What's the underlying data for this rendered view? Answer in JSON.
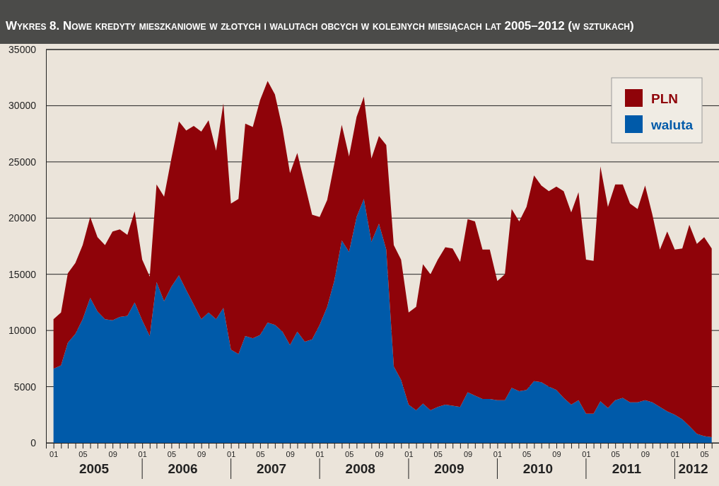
{
  "chart_data": {
    "type": "area",
    "stacked": true,
    "title": "Wykres 8. Nowe kredyty mieszkaniowe w złotych i walutach obcych w kolejnych miesiącach lat 2005–2012 (w sztukach)",
    "x": [
      "2005-01",
      "2005-02",
      "2005-03",
      "2005-04",
      "2005-05",
      "2005-06",
      "2005-07",
      "2005-08",
      "2005-09",
      "2005-10",
      "2005-11",
      "2005-12",
      "2006-01",
      "2006-02",
      "2006-03",
      "2006-04",
      "2006-05",
      "2006-06",
      "2006-07",
      "2006-08",
      "2006-09",
      "2006-10",
      "2006-11",
      "2006-12",
      "2007-01",
      "2007-02",
      "2007-03",
      "2007-04",
      "2007-05",
      "2007-06",
      "2007-07",
      "2007-08",
      "2007-09",
      "2007-10",
      "2007-11",
      "2007-12",
      "2008-01",
      "2008-02",
      "2008-03",
      "2008-04",
      "2008-05",
      "2008-06",
      "2008-07",
      "2008-08",
      "2008-09",
      "2008-10",
      "2008-11",
      "2008-12",
      "2009-01",
      "2009-02",
      "2009-03",
      "2009-04",
      "2009-05",
      "2009-06",
      "2009-07",
      "2009-08",
      "2009-09",
      "2009-10",
      "2009-11",
      "2009-12",
      "2010-01",
      "2010-02",
      "2010-03",
      "2010-04",
      "2010-05",
      "2010-06",
      "2010-07",
      "2010-08",
      "2010-09",
      "2010-10",
      "2010-11",
      "2010-12",
      "2011-01",
      "2011-02",
      "2011-03",
      "2011-04",
      "2011-05",
      "2011-06",
      "2011-07",
      "2011-08",
      "2011-09",
      "2011-10",
      "2011-11",
      "2011-12",
      "2012-01",
      "2012-02",
      "2012-03",
      "2012-04",
      "2012-05",
      "2012-06"
    ],
    "series": [
      {
        "name": "waluta",
        "color": "#005aa9",
        "values": [
          6600,
          6900,
          8900,
          9700,
          11000,
          12900,
          11700,
          11000,
          10900,
          11200,
          11300,
          12500,
          10900,
          9500,
          14300,
          12600,
          13900,
          14900,
          13600,
          12300,
          11000,
          11600,
          11000,
          12000,
          8300,
          7900,
          9500,
          9300,
          9600,
          10700,
          10500,
          9900,
          8700,
          9900,
          9000,
          9200,
          10500,
          12100,
          14400,
          18000,
          17000,
          20100,
          21700,
          17900,
          19500,
          17200,
          6800,
          5600,
          3400,
          2900,
          3500,
          2900,
          3200,
          3400,
          3300,
          3200,
          4500,
          4200,
          3900,
          3900,
          3800,
          3800,
          4900,
          4600,
          4700,
          5500,
          5400,
          5000,
          4700,
          4000,
          3400,
          3800,
          2600,
          2600,
          3700,
          3100,
          3800,
          4000,
          3600,
          3600,
          3800,
          3600,
          3200,
          2800,
          2500,
          2100,
          1500,
          800,
          600,
          500
        ]
      },
      {
        "name": "PLN",
        "color": "#8f0309",
        "values": [
          4400,
          4700,
          6200,
          6300,
          6600,
          7200,
          6600,
          6600,
          7900,
          7800,
          7200,
          8100,
          5400,
          5300,
          8700,
          9300,
          11400,
          13700,
          14200,
          15900,
          16700,
          17100,
          15000,
          18200,
          13000,
          13800,
          18900,
          18800,
          20900,
          21500,
          20500,
          18100,
          15300,
          15900,
          14000,
          11100,
          9600,
          9500,
          10400,
          10300,
          8500,
          8900,
          9100,
          7400,
          7800,
          9300,
          10800,
          10700,
          8200,
          9200,
          12400,
          12100,
          13100,
          14000,
          14000,
          12900,
          15400,
          15500,
          13300,
          13300,
          10600,
          11200,
          15900,
          15100,
          16300,
          18300,
          17500,
          17400,
          18100,
          18400,
          17100,
          18500,
          13700,
          13600,
          20900,
          17900,
          19200,
          19000,
          17700,
          17200,
          19100,
          16700,
          14000,
          16000,
          14700,
          15200,
          17900,
          16900,
          17700,
          16800
        ]
      }
    ],
    "xlim": [
      "2004-12",
      "2012-07"
    ],
    "xticks": [
      {
        "value": "2005-01",
        "label": "01"
      },
      {
        "value": "2005-02",
        "label": null
      },
      {
        "value": "2005-03",
        "label": null
      },
      {
        "value": "2005-04",
        "label": null
      },
      {
        "value": "2005-05",
        "label": "05"
      },
      {
        "value": "2005-06",
        "label": null
      },
      {
        "value": "2005-07",
        "label": null
      },
      {
        "value": "2005-08",
        "label": null
      },
      {
        "value": "2005-09",
        "label": "09"
      },
      {
        "value": "2005-10",
        "label": null
      },
      {
        "value": "2005-11",
        "label": null
      },
      {
        "value": "2005-12",
        "label": null
      },
      {
        "value": "2006-01",
        "label": "01"
      },
      {
        "value": "2006-02",
        "label": null
      },
      {
        "value": "2006-03",
        "label": null
      },
      {
        "value": "2006-04",
        "label": null
      },
      {
        "value": "2006-05",
        "label": "05"
      },
      {
        "value": "2006-06",
        "label": null
      },
      {
        "value": "2006-07",
        "label": null
      },
      {
        "value": "2006-08",
        "label": null
      },
      {
        "value": "2006-09",
        "label": "09"
      },
      {
        "value": "2006-10",
        "label": null
      },
      {
        "value": "2006-11",
        "label": null
      },
      {
        "value": "2006-12",
        "label": null
      },
      {
        "value": "2007-01",
        "label": "01"
      },
      {
        "value": "2007-02",
        "label": null
      },
      {
        "value": "2007-03",
        "label": null
      },
      {
        "value": "2007-04",
        "label": null
      },
      {
        "value": "2007-05",
        "label": "05"
      },
      {
        "value": "2007-06",
        "label": null
      },
      {
        "value": "2007-07",
        "label": null
      },
      {
        "value": "2007-08",
        "label": null
      },
      {
        "value": "2007-09",
        "label": "09"
      },
      {
        "value": "2007-10",
        "label": null
      },
      {
        "value": "2007-11",
        "label": null
      },
      {
        "value": "2007-12",
        "label": null
      },
      {
        "value": "2008-01",
        "label": "01"
      },
      {
        "value": "2008-02",
        "label": null
      },
      {
        "value": "2008-03",
        "label": null
      },
      {
        "value": "2008-04",
        "label": null
      },
      {
        "value": "2008-05",
        "label": "05"
      },
      {
        "value": "2008-06",
        "label": null
      },
      {
        "value": "2008-07",
        "label": null
      },
      {
        "value": "2008-08",
        "label": null
      },
      {
        "value": "2008-09",
        "label": "09"
      },
      {
        "value": "2008-10",
        "label": null
      },
      {
        "value": "2008-11",
        "label": null
      },
      {
        "value": "2008-12",
        "label": null
      },
      {
        "value": "2009-01",
        "label": "01"
      },
      {
        "value": "2009-02",
        "label": null
      },
      {
        "value": "2009-03",
        "label": null
      },
      {
        "value": "2009-04",
        "label": null
      },
      {
        "value": "2009-05",
        "label": "05"
      },
      {
        "value": "2009-06",
        "label": null
      },
      {
        "value": "2009-07",
        "label": null
      },
      {
        "value": "2009-08",
        "label": null
      },
      {
        "value": "2009-09",
        "label": "09"
      },
      {
        "value": "2009-10",
        "label": null
      },
      {
        "value": "2009-11",
        "label": null
      },
      {
        "value": "2009-12",
        "label": null
      },
      {
        "value": "2010-01",
        "label": "01"
      },
      {
        "value": "2010-02",
        "label": null
      },
      {
        "value": "2010-03",
        "label": null
      },
      {
        "value": "2010-04",
        "label": null
      },
      {
        "value": "2010-05",
        "label": "05"
      },
      {
        "value": "2010-06",
        "label": null
      },
      {
        "value": "2010-07",
        "label": null
      },
      {
        "value": "2010-08",
        "label": null
      },
      {
        "value": "2010-09",
        "label": "09"
      },
      {
        "value": "2010-10",
        "label": null
      },
      {
        "value": "2010-11",
        "label": null
      },
      {
        "value": "2010-12",
        "label": null
      },
      {
        "value": "2011-01",
        "label": "01"
      },
      {
        "value": "2011-02",
        "label": null
      },
      {
        "value": "2011-03",
        "label": null
      },
      {
        "value": "2011-04",
        "label": null
      },
      {
        "value": "2011-05",
        "label": "05"
      },
      {
        "value": "2011-06",
        "label": null
      },
      {
        "value": "2011-07",
        "label": null
      },
      {
        "value": "2011-08",
        "label": null
      },
      {
        "value": "2011-09",
        "label": "09"
      },
      {
        "value": "2011-10",
        "label": null
      },
      {
        "value": "2011-11",
        "label": null
      },
      {
        "value": "2011-12",
        "label": null
      },
      {
        "value": "2012-01",
        "label": "01"
      },
      {
        "value": "2012-02",
        "label": null
      },
      {
        "value": "2012-03",
        "label": null
      },
      {
        "value": "2012-04",
        "label": null
      },
      {
        "value": "2012-05",
        "label": "05"
      },
      {
        "value": "2012-06",
        "label": null
      }
    ],
    "ylim": [
      0,
      35000
    ],
    "yticks": [
      0,
      5000,
      10000,
      15000,
      20000,
      25000,
      30000,
      35000
    ],
    "grid": "y",
    "legend": "top right",
    "annotations": [
      "2005",
      "2006",
      "2007",
      "2008",
      "2009",
      "2010",
      "2011",
      "2012"
    ]
  }
}
